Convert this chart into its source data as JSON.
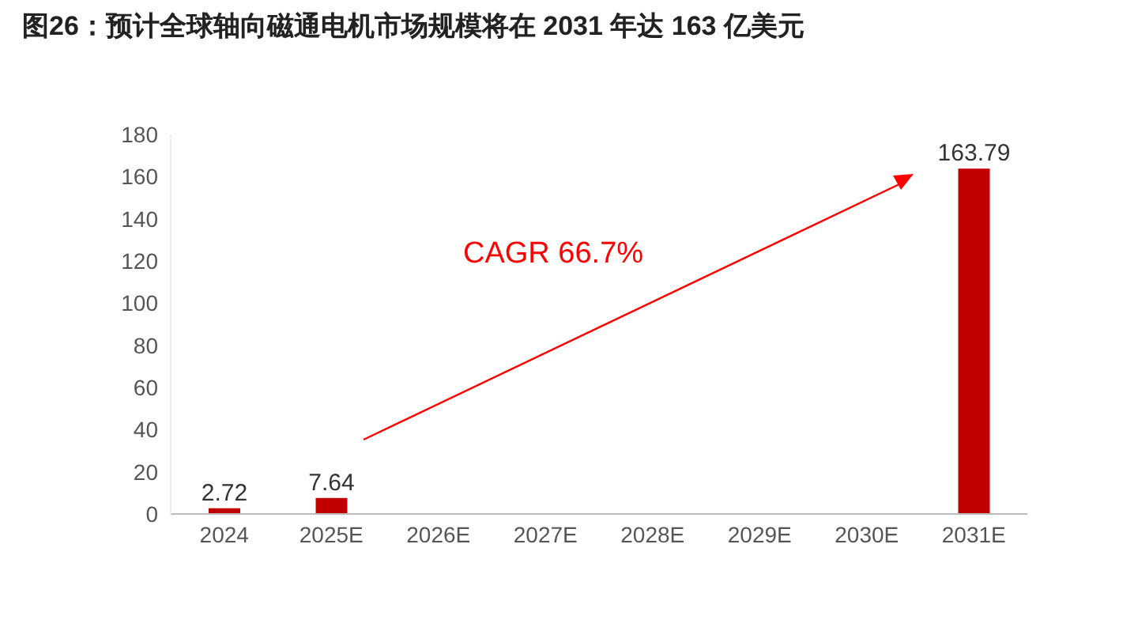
{
  "chart_data": {
    "type": "bar",
    "title": "图26：预计全球轴向磁通电机市场规模将在 2031 年达 163 亿美元",
    "categories": [
      "2024",
      "2025E",
      "2026E",
      "2027E",
      "2028E",
      "2029E",
      "2030E",
      "2031E"
    ],
    "values": [
      2.72,
      7.64,
      null,
      null,
      null,
      null,
      null,
      163.79
    ],
    "color": "#c00000",
    "ylim": [
      0,
      180
    ],
    "yticks": [
      0,
      20,
      40,
      60,
      80,
      100,
      120,
      140,
      160,
      180
    ],
    "grid": false,
    "data_labels": true,
    "annotations": [
      "CAGR 66.7%"
    ]
  }
}
